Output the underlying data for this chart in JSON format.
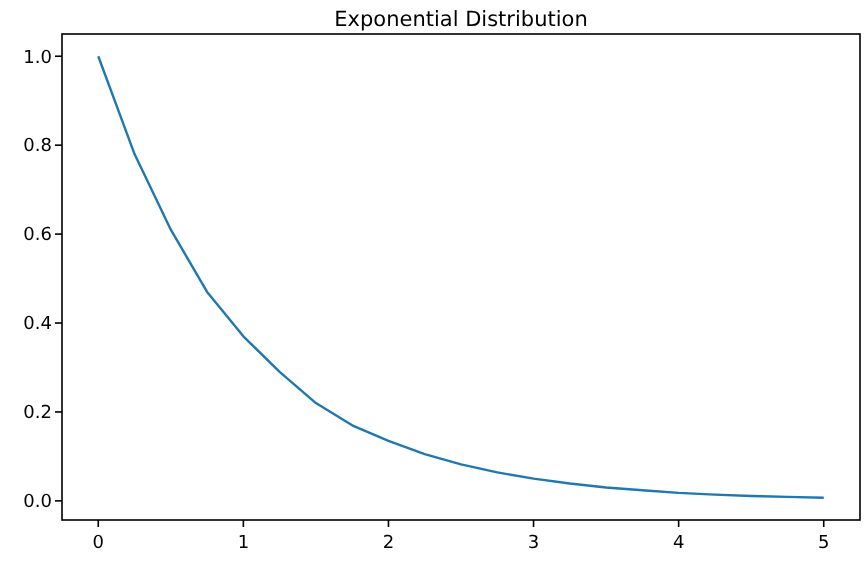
{
  "chart_data": {
    "type": "line",
    "title": "Exponential Distribution",
    "x": [
      0,
      0.25,
      0.5,
      0.75,
      1,
      1.25,
      1.5,
      1.75,
      2,
      2.25,
      2.5,
      2.75,
      3,
      3.25,
      3.5,
      3.75,
      4,
      4.25,
      4.5,
      4.75,
      5
    ],
    "series": [
      {
        "color": "#1f77b4",
        "values": [
          1,
          0.78,
          0.61,
          0.47,
          0.37,
          0.29,
          0.22,
          0.17,
          0.135,
          0.105,
          0.082,
          0.064,
          0.05,
          0.039,
          0.03,
          0.024,
          0.018,
          0.014,
          0.011,
          0.009,
          0.007
        ]
      }
    ],
    "xlim": [
      -0.25,
      5.25
    ],
    "ylim": [
      -0.043,
      1.05
    ],
    "xticks": [
      0,
      1,
      2,
      3,
      4,
      5
    ],
    "yticks": [
      {
        "value": 0,
        "label": "0.0"
      },
      {
        "value": 0.2,
        "label": "0.2"
      },
      {
        "value": 0.4,
        "label": "0.4"
      },
      {
        "value": 0.6,
        "label": "0.6"
      },
      {
        "value": 0.8,
        "label": "0.8"
      },
      {
        "value": 1,
        "label": "1.0"
      }
    ],
    "grid": false,
    "marker": "none",
    "line_style": "solid"
  }
}
